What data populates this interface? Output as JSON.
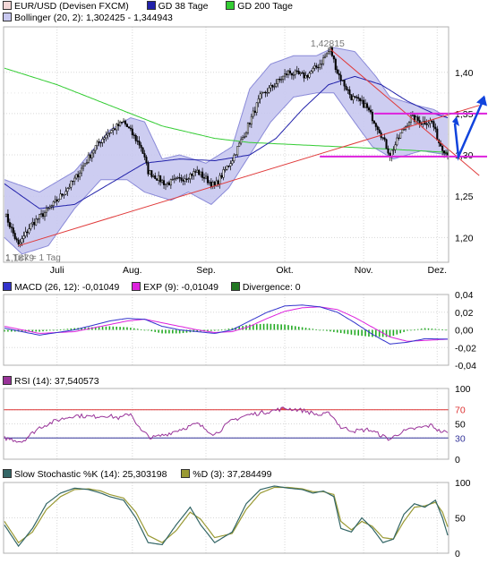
{
  "colors": {
    "frame": "#b0b0b0",
    "grid": "#d8d8d8",
    "band_fill": "#c8c8f0",
    "band_line": "#8a8ad8",
    "gd38": "#2222aa",
    "gd200": "#33cc33",
    "trend_red": "#e03a3a",
    "trend_magenta": "#dd22dd",
    "arrow_blue": "#1144dd",
    "candle_up": "#ffffff",
    "candle_down": "#000000",
    "macd_line": "#3333cc",
    "exp_line": "#dd22dd",
    "divergence": "#22aa22",
    "rsi_line": "#993399",
    "rsi70": "#dd3333",
    "rsi30": "#333399",
    "stoch_k": "#336666",
    "stoch_d": "#999933"
  },
  "legends": {
    "price": {
      "instrument": "EUR/USD (Devisen FXCM)",
      "gd38": "GD 38 Tage",
      "gd200": "GD 200 Tage",
      "bollinger": "Bollinger (20, 2): 1,302425 - 1,344943"
    },
    "macd": {
      "macd": "MACD (26, 12): -0,01049",
      "exp": "EXP (9): -0,01049",
      "divergence": "Divergence: 0"
    },
    "rsi": {
      "rsi": "RSI (14): 37,540573"
    },
    "stoch": {
      "k": "Slow Stochastic %K (14): 25,303198",
      "d": "%D (3): 37,284499"
    }
  },
  "price_panel": {
    "high_label": "1,42815",
    "low_label": "1,1879",
    "tick_note": "1 Tick = 1 Tag",
    "y_ticks": [
      "1,40",
      "1,35",
      "1,30",
      "1,25",
      "1,20"
    ],
    "x_ticks": [
      "Juli",
      "Aug.",
      "Sep.",
      "Okt.",
      "Nov.",
      "Dez."
    ]
  },
  "macd_panel": {
    "y_ticks": [
      "0,04",
      "0,02",
      "0,00",
      "-0,02",
      "-0,04"
    ]
  },
  "rsi_panel": {
    "y_ticks": [
      "100",
      "70",
      "50",
      "30",
      "0"
    ]
  },
  "stoch_panel": {
    "y_ticks": [
      "100",
      "50",
      "0"
    ]
  },
  "chart_data": [
    {
      "type": "line",
      "title": "EUR/USD (Devisen FXCM)",
      "ylim": [
        1.17,
        1.455
      ],
      "x_categories": [
        "Juli",
        "Aug.",
        "Sep.",
        "Okt.",
        "Nov.",
        "Dez."
      ],
      "price_close_nodes": [
        [
          0,
          1.23
        ],
        [
          8,
          1.19
        ],
        [
          15,
          1.215
        ],
        [
          28,
          1.24
        ],
        [
          40,
          1.27
        ],
        [
          52,
          1.31
        ],
        [
          58,
          1.325
        ],
        [
          68,
          1.34
        ],
        [
          78,
          1.31
        ],
        [
          82,
          1.28
        ],
        [
          92,
          1.265
        ],
        [
          100,
          1.27
        ],
        [
          110,
          1.28
        ],
        [
          120,
          1.262
        ],
        [
          130,
          1.295
        ],
        [
          138,
          1.33
        ],
        [
          146,
          1.37
        ],
        [
          154,
          1.385
        ],
        [
          162,
          1.4
        ],
        [
          172,
          1.395
        ],
        [
          180,
          1.41
        ],
        [
          186,
          1.428
        ],
        [
          190,
          1.4
        ],
        [
          198,
          1.37
        ],
        [
          206,
          1.36
        ],
        [
          214,
          1.33
        ],
        [
          220,
          1.3
        ],
        [
          226,
          1.325
        ],
        [
          232,
          1.345
        ],
        [
          238,
          1.34
        ],
        [
          244,
          1.34
        ],
        [
          248,
          1.315
        ],
        [
          253,
          1.3
        ]
      ],
      "bollinger_upper_nodes": [
        [
          0,
          1.27
        ],
        [
          20,
          1.255
        ],
        [
          40,
          1.28
        ],
        [
          60,
          1.33
        ],
        [
          72,
          1.345
        ],
        [
          80,
          1.34
        ],
        [
          90,
          1.295
        ],
        [
          100,
          1.3
        ],
        [
          115,
          1.29
        ],
        [
          130,
          1.31
        ],
        [
          140,
          1.38
        ],
        [
          152,
          1.41
        ],
        [
          165,
          1.42
        ],
        [
          178,
          1.42
        ],
        [
          188,
          1.43
        ],
        [
          200,
          1.425
        ],
        [
          212,
          1.395
        ],
        [
          220,
          1.37
        ],
        [
          235,
          1.36
        ],
        [
          245,
          1.355
        ],
        [
          253,
          1.345
        ]
      ],
      "bollinger_lower_nodes": [
        [
          0,
          1.2
        ],
        [
          10,
          1.18
        ],
        [
          25,
          1.19
        ],
        [
          40,
          1.235
        ],
        [
          55,
          1.27
        ],
        [
          70,
          1.27
        ],
        [
          80,
          1.255
        ],
        [
          95,
          1.245
        ],
        [
          105,
          1.255
        ],
        [
          118,
          1.24
        ],
        [
          128,
          1.26
        ],
        [
          140,
          1.3
        ],
        [
          152,
          1.34
        ],
        [
          165,
          1.37
        ],
        [
          178,
          1.375
        ],
        [
          188,
          1.375
        ],
        [
          198,
          1.345
        ],
        [
          210,
          1.31
        ],
        [
          222,
          1.295
        ],
        [
          238,
          1.305
        ],
        [
          253,
          1.3
        ]
      ],
      "gd38_nodes": [
        [
          0,
          1.265
        ],
        [
          20,
          1.235
        ],
        [
          40,
          1.24
        ],
        [
          60,
          1.265
        ],
        [
          80,
          1.29
        ],
        [
          100,
          1.295
        ],
        [
          120,
          1.293
        ],
        [
          140,
          1.3
        ],
        [
          155,
          1.32
        ],
        [
          170,
          1.355
        ],
        [
          185,
          1.385
        ],
        [
          200,
          1.395
        ],
        [
          215,
          1.385
        ],
        [
          230,
          1.365
        ],
        [
          245,
          1.35
        ],
        [
          253,
          1.345
        ]
      ],
      "gd200_nodes": [
        [
          0,
          1.405
        ],
        [
          30,
          1.385
        ],
        [
          60,
          1.36
        ],
        [
          90,
          1.335
        ],
        [
          120,
          1.32
        ],
        [
          140,
          1.315
        ],
        [
          160,
          1.313
        ],
        [
          180,
          1.311
        ],
        [
          200,
          1.309
        ],
        [
          220,
          1.307
        ],
        [
          253,
          1.303
        ]
      ],
      "trendlines": [
        {
          "name": "support",
          "from": [
            8,
            1.19
          ],
          "to": [
            271,
            1.36
          ]
        },
        {
          "name": "resistance",
          "from": [
            186,
            1.428
          ],
          "to": [
            271,
            1.275
          ]
        }
      ],
      "horizontal_levels": [
        1.298,
        1.35
      ]
    },
    {
      "type": "line",
      "title": "MACD (26, 12)",
      "ylim": [
        -0.04,
        0.04
      ],
      "macd_nodes": [
        [
          0,
          0.002
        ],
        [
          20,
          -0.006
        ],
        [
          40,
          0.0
        ],
        [
          60,
          0.01
        ],
        [
          70,
          0.013
        ],
        [
          80,
          0.012
        ],
        [
          90,
          0.004
        ],
        [
          100,
          0.0
        ],
        [
          110,
          -0.002
        ],
        [
          120,
          -0.004
        ],
        [
          130,
          0.0
        ],
        [
          140,
          0.01
        ],
        [
          150,
          0.02
        ],
        [
          160,
          0.027
        ],
        [
          170,
          0.028
        ],
        [
          180,
          0.026
        ],
        [
          190,
          0.02
        ],
        [
          200,
          0.008
        ],
        [
          210,
          -0.005
        ],
        [
          220,
          -0.016
        ],
        [
          230,
          -0.014
        ],
        [
          240,
          -0.01
        ],
        [
          253,
          -0.0105
        ]
      ],
      "exp_nodes": [
        [
          0,
          0.004
        ],
        [
          20,
          -0.004
        ],
        [
          40,
          -0.002
        ],
        [
          60,
          0.006
        ],
        [
          70,
          0.01
        ],
        [
          80,
          0.012
        ],
        [
          90,
          0.008
        ],
        [
          100,
          0.004
        ],
        [
          110,
          0.0
        ],
        [
          120,
          -0.003
        ],
        [
          130,
          -0.002
        ],
        [
          140,
          0.004
        ],
        [
          150,
          0.013
        ],
        [
          160,
          0.021
        ],
        [
          170,
          0.025
        ],
        [
          180,
          0.026
        ],
        [
          190,
          0.023
        ],
        [
          200,
          0.014
        ],
        [
          210,
          0.003
        ],
        [
          220,
          -0.008
        ],
        [
          230,
          -0.013
        ],
        [
          240,
          -0.012
        ],
        [
          253,
          -0.0105
        ]
      ]
    },
    {
      "type": "line",
      "title": "RSI (14)",
      "ylim": [
        0,
        100
      ],
      "rsi_nodes": [
        [
          0,
          30
        ],
        [
          10,
          25
        ],
        [
          20,
          45
        ],
        [
          30,
          55
        ],
        [
          40,
          62
        ],
        [
          50,
          60
        ],
        [
          58,
          62
        ],
        [
          66,
          58
        ],
        [
          72,
          65
        ],
        [
          78,
          40
        ],
        [
          84,
          30
        ],
        [
          92,
          35
        ],
        [
          100,
          42
        ],
        [
          110,
          50
        ],
        [
          120,
          35
        ],
        [
          130,
          55
        ],
        [
          138,
          62
        ],
        [
          145,
          65
        ],
        [
          152,
          68
        ],
        [
          160,
          72
        ],
        [
          168,
          70
        ],
        [
          172,
          68
        ],
        [
          180,
          62
        ],
        [
          186,
          65
        ],
        [
          192,
          45
        ],
        [
          200,
          40
        ],
        [
          208,
          42
        ],
        [
          214,
          35
        ],
        [
          220,
          28
        ],
        [
          226,
          38
        ],
        [
          232,
          42
        ],
        [
          238,
          45
        ],
        [
          244,
          48
        ],
        [
          248,
          40
        ],
        [
          253,
          37.5
        ]
      ],
      "levels": [
        70,
        30
      ]
    },
    {
      "type": "line",
      "title": "Slow Stochastic %K (14)",
      "ylim": [
        0,
        100
      ],
      "k_nodes": [
        [
          0,
          40
        ],
        [
          8,
          10
        ],
        [
          16,
          35
        ],
        [
          24,
          70
        ],
        [
          32,
          85
        ],
        [
          40,
          92
        ],
        [
          48,
          90
        ],
        [
          55,
          85
        ],
        [
          60,
          80
        ],
        [
          68,
          75
        ],
        [
          75,
          50
        ],
        [
          82,
          15
        ],
        [
          90,
          12
        ],
        [
          98,
          40
        ],
        [
          106,
          65
        ],
        [
          112,
          40
        ],
        [
          120,
          15
        ],
        [
          130,
          30
        ],
        [
          138,
          70
        ],
        [
          146,
          90
        ],
        [
          154,
          95
        ],
        [
          162,
          92
        ],
        [
          170,
          90
        ],
        [
          176,
          85
        ],
        [
          182,
          88
        ],
        [
          188,
          80
        ],
        [
          192,
          35
        ],
        [
          198,
          30
        ],
        [
          204,
          50
        ],
        [
          210,
          35
        ],
        [
          216,
          15
        ],
        [
          222,
          20
        ],
        [
          228,
          55
        ],
        [
          234,
          70
        ],
        [
          240,
          65
        ],
        [
          246,
          75
        ],
        [
          250,
          50
        ],
        [
          253,
          25.3
        ]
      ],
      "d_nodes": [
        [
          0,
          45
        ],
        [
          8,
          15
        ],
        [
          16,
          30
        ],
        [
          24,
          62
        ],
        [
          32,
          80
        ],
        [
          40,
          90
        ],
        [
          48,
          91
        ],
        [
          55,
          88
        ],
        [
          60,
          83
        ],
        [
          68,
          78
        ],
        [
          75,
          58
        ],
        [
          82,
          25
        ],
        [
          90,
          15
        ],
        [
          98,
          32
        ],
        [
          106,
          58
        ],
        [
          112,
          48
        ],
        [
          120,
          22
        ],
        [
          130,
          28
        ],
        [
          138,
          62
        ],
        [
          146,
          85
        ],
        [
          154,
          93
        ],
        [
          162,
          93
        ],
        [
          170,
          91
        ],
        [
          176,
          87
        ],
        [
          182,
          87
        ],
        [
          188,
          83
        ],
        [
          192,
          45
        ],
        [
          198,
          33
        ],
        [
          204,
          45
        ],
        [
          210,
          38
        ],
        [
          216,
          22
        ],
        [
          222,
          20
        ],
        [
          228,
          45
        ],
        [
          234,
          65
        ],
        [
          240,
          67
        ],
        [
          246,
          72
        ],
        [
          250,
          58
        ],
        [
          253,
          37.3
        ]
      ]
    }
  ]
}
